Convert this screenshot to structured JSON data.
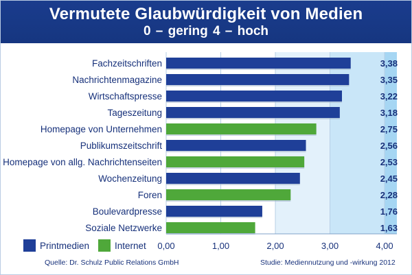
{
  "header": {
    "title": "Vermutete Glaubwürdigkeit von Medien",
    "subtitle": "0 – gering    4 – hoch"
  },
  "footer": {
    "source": "Quelle: Dr. Schulz Public Relations GmbH",
    "study": "Studie: Mediennutzung und -wirkung 2012"
  },
  "colors": {
    "header_bg": "#1a3c8d",
    "print": "#1f3f98",
    "internet": "#4fa83a",
    "band_light": "#e3f1fb",
    "band_mid": "#c9e6f8",
    "band_dark": "#a6d6f3"
  },
  "chart_data": {
    "type": "bar",
    "orientation": "horizontal",
    "categories": [
      "Fachzeitschriften",
      "Nachrichtenmagazine",
      "Wirtschaftspresse",
      "Tageszeitung",
      "Homepage von Unternehmen",
      "Publikumszeitschrift",
      "Homepage von allg. Nachrichtenseiten",
      "Wochenzeitung",
      "Foren",
      "Boulevardpresse",
      "Soziale Netzwerke"
    ],
    "values": [
      3.38,
      3.35,
      3.22,
      3.18,
      2.75,
      2.56,
      2.53,
      2.45,
      2.28,
      1.76,
      1.63
    ],
    "value_labels": [
      "3,38",
      "3,35",
      "3,22",
      "3,18",
      "2,75",
      "2,56",
      "2,53",
      "2,45",
      "2,28",
      "1,76",
      "1,63"
    ],
    "groups": [
      "print",
      "print",
      "print",
      "print",
      "internet",
      "print",
      "internet",
      "print",
      "internet",
      "print",
      "internet"
    ],
    "legend": [
      {
        "key": "print",
        "name": "Printmedien"
      },
      {
        "key": "internet",
        "name": "Internet"
      }
    ],
    "xlim": [
      0,
      4
    ],
    "ticks": [
      0,
      1,
      2,
      3,
      4
    ],
    "tick_labels": [
      "0,00",
      "1,00",
      "2,00",
      "3,00",
      "4,00"
    ],
    "legend_position": "bottom-left"
  }
}
